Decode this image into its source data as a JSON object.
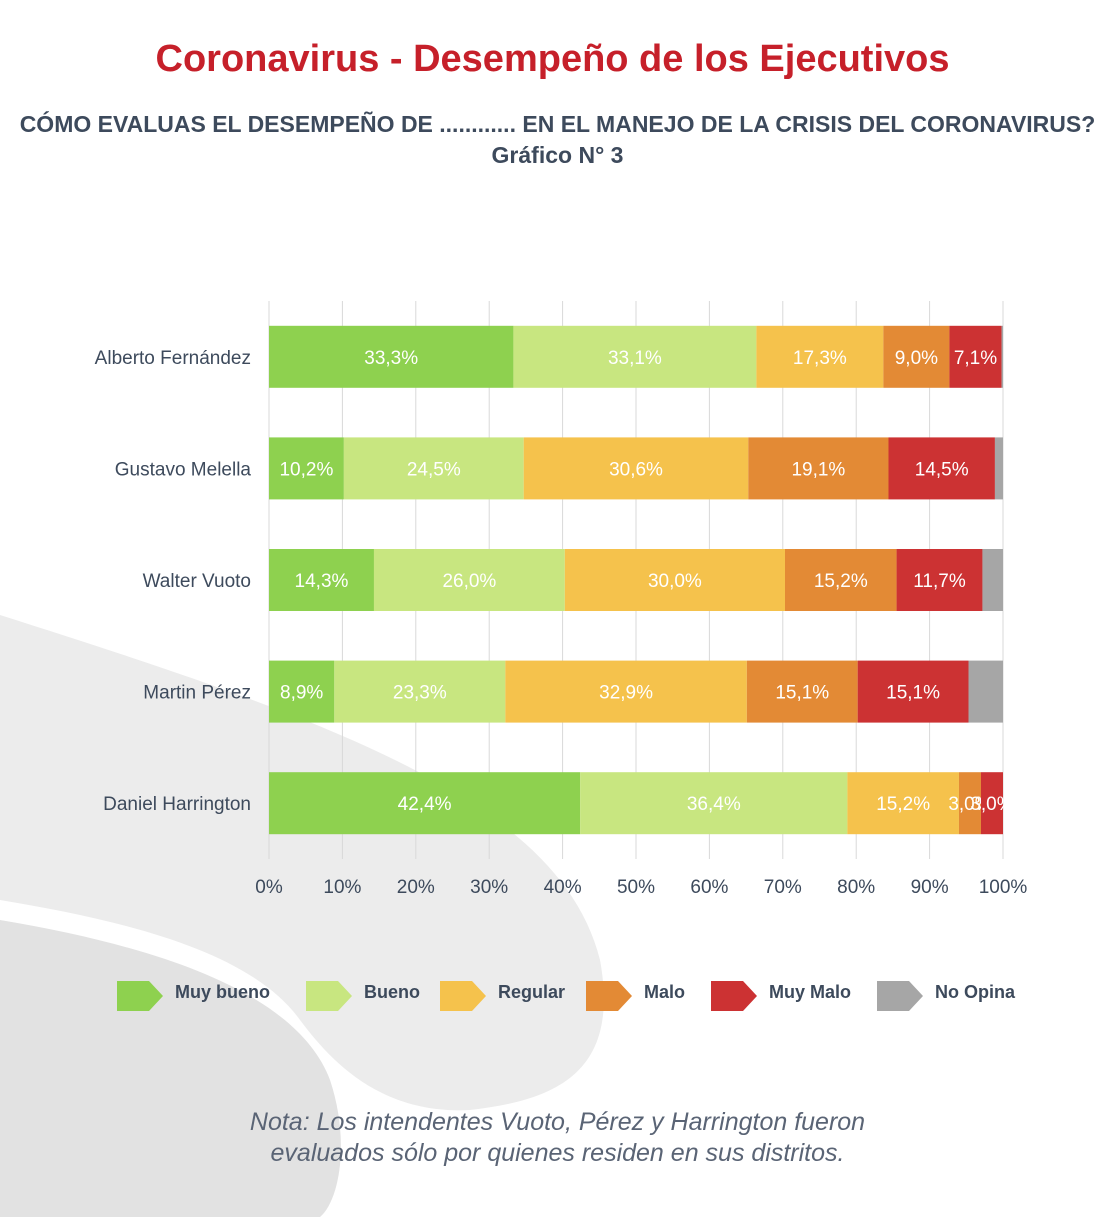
{
  "header": {
    "title": "Coronavirus - Desempeño de los Ejecutivos",
    "subtitle": "CÓMO EVALUAS EL DESEMPEÑO DE ............ EN EL MANEJO DE LA CRISIS DEL CORONAVIRUS?",
    "chart_number": "Gráfico N° 3"
  },
  "legend": {
    "items": [
      {
        "label": "Muy bueno",
        "color": "#8ed14f"
      },
      {
        "label": "Bueno",
        "color": "#c8e680"
      },
      {
        "label": "Regular",
        "color": "#f5c24c"
      },
      {
        "label": "Malo",
        "color": "#e38a35"
      },
      {
        "label": "Muy Malo",
        "color": "#cc3233"
      },
      {
        "label": "No Opina",
        "color": "#a6a6a6"
      }
    ]
  },
  "note": {
    "line1": "Nota: Los intendentes Vuoto, Pérez y Harrington fueron",
    "line2": "evaluados sólo por quienes residen en sus distritos."
  },
  "chart_data": {
    "type": "bar",
    "orientation": "horizontal",
    "stacked": "100%",
    "categories": [
      "Alberto Fernández",
      "Gustavo Melella",
      "Walter Vuoto",
      "Martin Pérez",
      "Daniel Harrington"
    ],
    "series": [
      {
        "name": "Muy bueno",
        "color": "#8ed14f",
        "values": [
          33.3,
          10.2,
          14.3,
          8.9,
          42.4
        ],
        "labels": [
          "33,3%",
          "10,2%",
          "14,3%",
          "8,9%",
          "42,4%"
        ]
      },
      {
        "name": "Bueno",
        "color": "#c8e680",
        "values": [
          33.1,
          24.5,
          26.0,
          23.3,
          36.4
        ],
        "labels": [
          "33,1%",
          "24,5%",
          "26,0%",
          "23,3%",
          "36,4%"
        ]
      },
      {
        "name": "Regular",
        "color": "#f5c24c",
        "values": [
          17.3,
          30.6,
          30.0,
          32.9,
          15.2
        ],
        "labels": [
          "17,3%",
          "30,6%",
          "30,0%",
          "32,9%",
          "15,2%"
        ]
      },
      {
        "name": "Malo",
        "color": "#e38a35",
        "values": [
          9.0,
          19.1,
          15.2,
          15.1,
          3.0
        ],
        "labels": [
          "9,0%",
          "19,1%",
          "15,2%",
          "15,1%",
          "3,0%"
        ]
      },
      {
        "name": "Muy Malo",
        "color": "#cc3233",
        "values": [
          7.1,
          14.5,
          11.7,
          15.1,
          3.0
        ],
        "labels": [
          "7,1%",
          "14,5%",
          "11,7%",
          "15,1%",
          "3,0%"
        ]
      },
      {
        "name": "No Opina",
        "color": "#a6a6a6",
        "values": [
          0.2,
          1.1,
          2.8,
          4.7,
          0.0
        ],
        "labels": [
          "",
          "",
          "",
          "",
          ""
        ]
      }
    ],
    "xlim": [
      0,
      100
    ],
    "x_ticks": [
      "0%",
      "10%",
      "20%",
      "30%",
      "40%",
      "50%",
      "60%",
      "70%",
      "80%",
      "90%",
      "100%"
    ],
    "grid": true,
    "legend_position": "bottom"
  }
}
